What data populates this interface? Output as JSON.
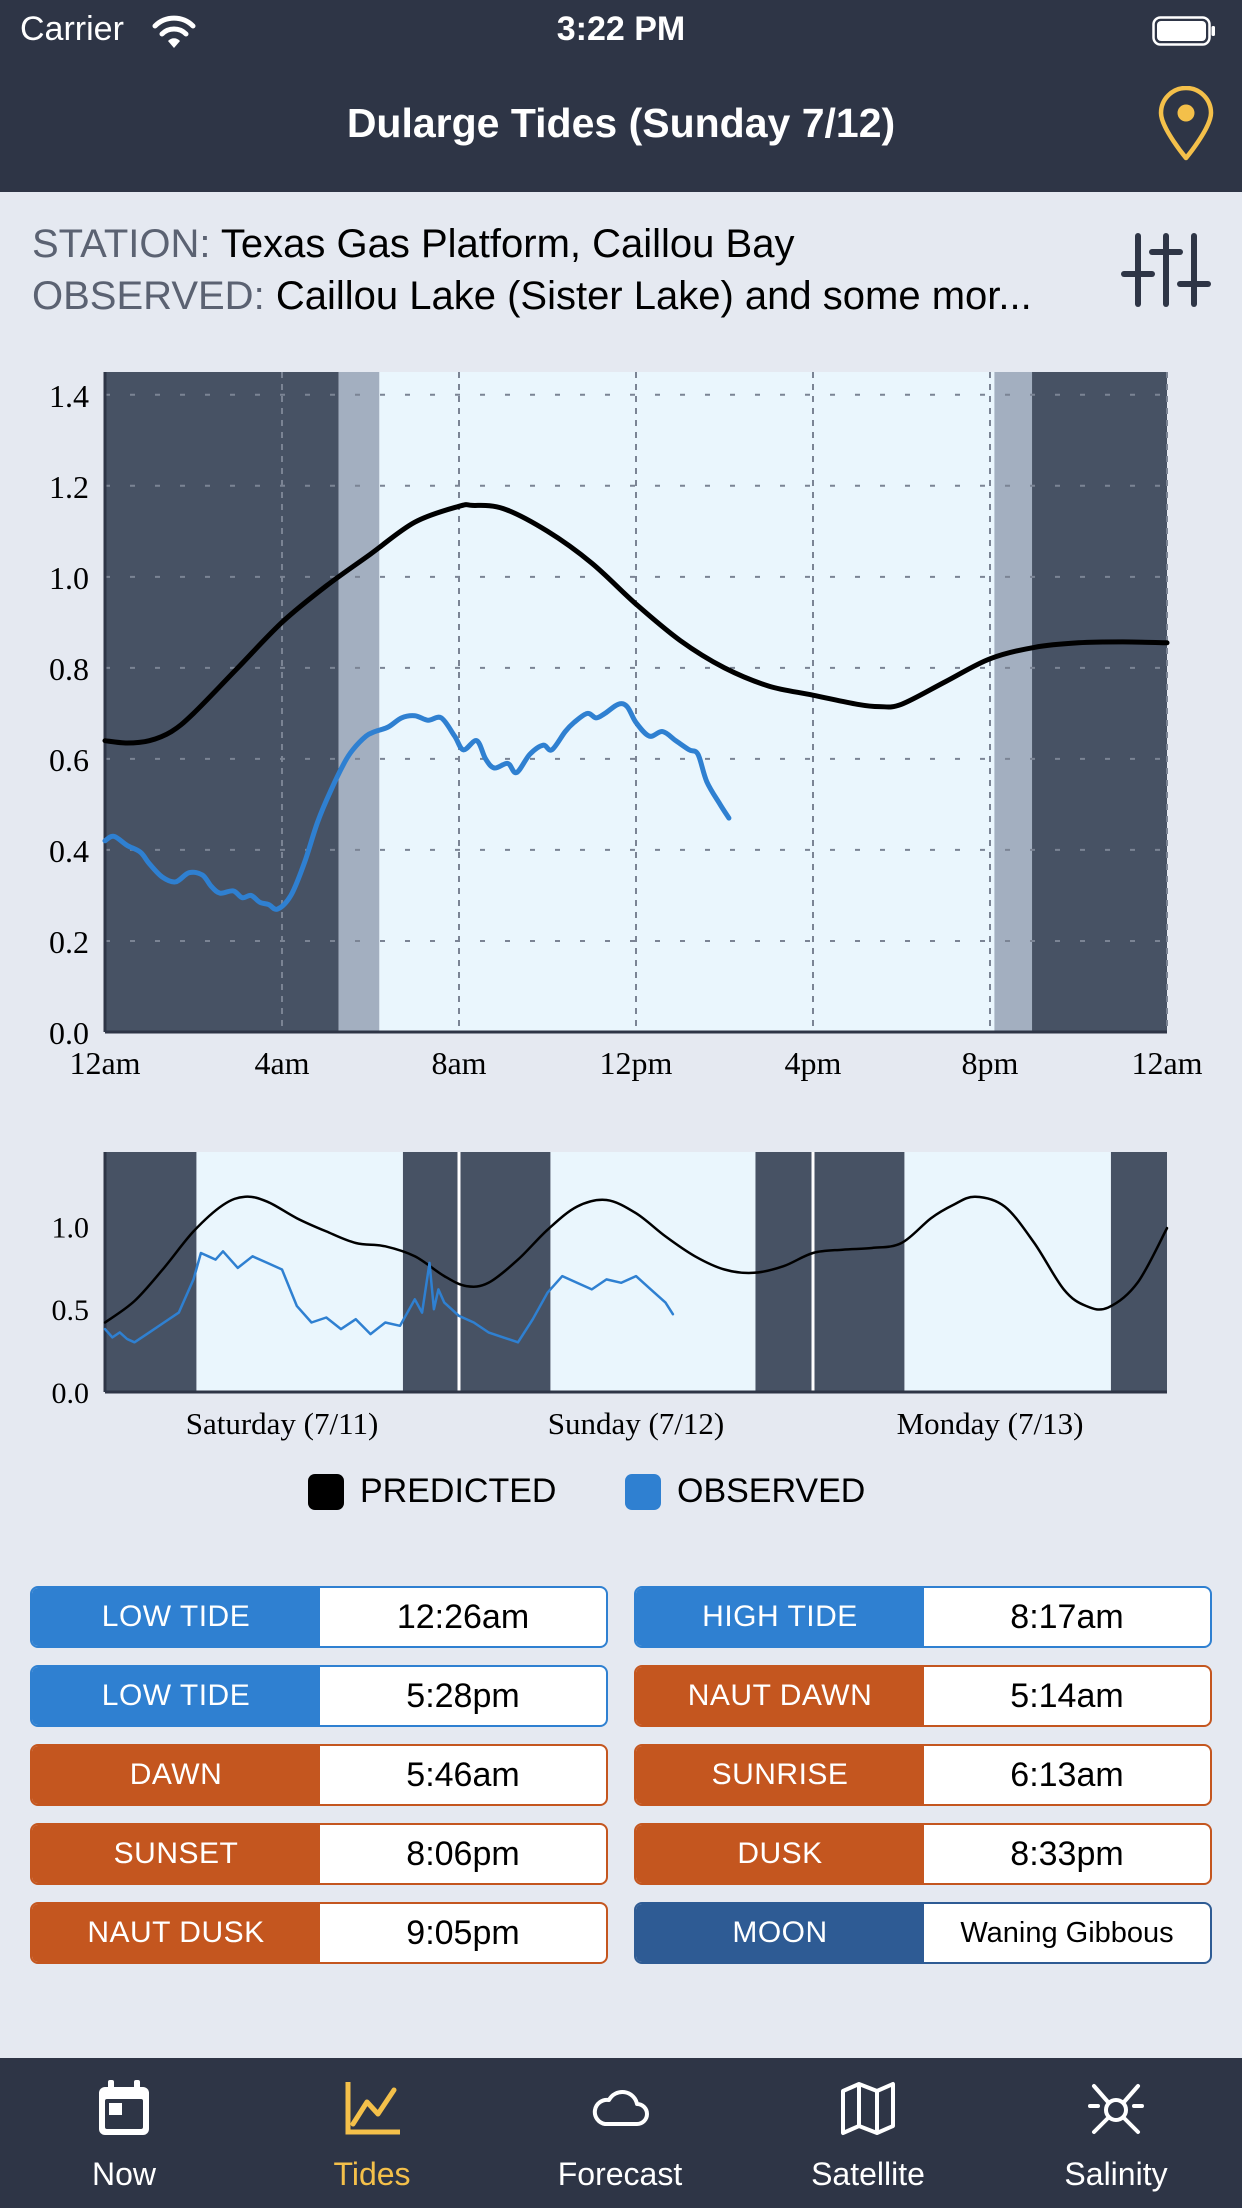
{
  "status_bar": {
    "carrier": "Carrier",
    "time": "3:22 PM"
  },
  "nav": {
    "title": "Dularge Tides (Sunday 7/12)",
    "location_icon": "map-pin-icon",
    "accent_color": "#f4c04a"
  },
  "station": {
    "label": "STATION:",
    "value": "Texas Gas Platform, Caillou Bay"
  },
  "observed": {
    "label": "OBSERVED:",
    "value": "Caillou Lake (Sister Lake) and some mor..."
  },
  "filter_icon": "sliders-icon",
  "chart_data": [
    {
      "type": "line",
      "x_unit": "hours since 12am",
      "x_ticks": [
        "12am",
        "4am",
        "8am",
        "12pm",
        "4pm",
        "8pm",
        "12am"
      ],
      "y_ticks": [
        "0.0",
        "0.2",
        "0.4",
        "0.6",
        "0.8",
        "1.0",
        "1.2",
        "1.4"
      ],
      "xlim": [
        0,
        24
      ],
      "ylim": [
        0,
        1.45
      ],
      "grid": true,
      "bands": [
        {
          "from": 0,
          "to": 5.28,
          "shade": "night",
          "color": "#475264"
        },
        {
          "from": 5.28,
          "to": 6.2,
          "shade": "twilight",
          "color": "#a3afc0"
        },
        {
          "from": 6.2,
          "to": 20.1,
          "shade": "day",
          "color": "#eaf6fd"
        },
        {
          "from": 20.1,
          "to": 20.95,
          "shade": "twilight",
          "color": "#a3afc0"
        },
        {
          "from": 20.95,
          "to": 24,
          "shade": "night",
          "color": "#475264"
        }
      ],
      "series": [
        {
          "name": "PREDICTED",
          "color": "#000000",
          "x": [
            0,
            0.5,
            1,
            1.5,
            2,
            3,
            4,
            5,
            6,
            7,
            8,
            8.3,
            9,
            10,
            11,
            12,
            13,
            14,
            15,
            16,
            17,
            17.5,
            18,
            19,
            20,
            21,
            22,
            23,
            24
          ],
          "y": [
            0.64,
            0.635,
            0.64,
            0.66,
            0.7,
            0.8,
            0.9,
            0.98,
            1.05,
            1.12,
            1.155,
            1.157,
            1.15,
            1.1,
            1.03,
            0.94,
            0.86,
            0.8,
            0.76,
            0.74,
            0.72,
            0.715,
            0.72,
            0.77,
            0.82,
            0.845,
            0.855,
            0.857,
            0.855
          ]
        },
        {
          "name": "OBSERVED",
          "color": "#2f80d1",
          "x": [
            0,
            0.2,
            0.5,
            0.8,
            1.0,
            1.3,
            1.6,
            1.9,
            2.2,
            2.4,
            2.6,
            2.9,
            3.1,
            3.3,
            3.5,
            3.7,
            3.9,
            4.2,
            4.5,
            4.8,
            5.1,
            5.4,
            5.6,
            5.9,
            6.1,
            6.4,
            6.7,
            7.0,
            7.3,
            7.6,
            7.9,
            8.1,
            8.4,
            8.6,
            8.8,
            9.1,
            9.3,
            9.6,
            9.9,
            10.1,
            10.4,
            10.6,
            10.9,
            11.1,
            11.3,
            11.6,
            11.8,
            12.0,
            12.3,
            12.6,
            12.9,
            13.2,
            13.4,
            13.6,
            13.9,
            14.1
          ],
          "y": [
            0.42,
            0.43,
            0.41,
            0.395,
            0.37,
            0.34,
            0.33,
            0.35,
            0.345,
            0.32,
            0.305,
            0.31,
            0.295,
            0.3,
            0.285,
            0.28,
            0.27,
            0.3,
            0.37,
            0.46,
            0.53,
            0.59,
            0.62,
            0.65,
            0.66,
            0.67,
            0.69,
            0.695,
            0.685,
            0.69,
            0.65,
            0.62,
            0.64,
            0.6,
            0.58,
            0.59,
            0.57,
            0.61,
            0.63,
            0.62,
            0.66,
            0.68,
            0.7,
            0.69,
            0.7,
            0.72,
            0.715,
            0.68,
            0.65,
            0.66,
            0.64,
            0.62,
            0.61,
            0.55,
            0.5,
            0.47
          ]
        }
      ]
    },
    {
      "type": "line",
      "x_unit": "hours since Saturday 12am",
      "x_labels": [
        "Saturday (7/11)",
        "Sunday (7/12)",
        "Monday (7/13)"
      ],
      "y_ticks": [
        "0.0",
        "0.5",
        "1.0"
      ],
      "xlim": [
        0,
        72
      ],
      "ylim": [
        0,
        1.45
      ],
      "grid": false,
      "day_dividers": [
        24,
        48
      ],
      "bands": [
        {
          "from": 0,
          "to": 6.2,
          "shade": "night"
        },
        {
          "from": 6.2,
          "to": 20.2,
          "shade": "day"
        },
        {
          "from": 20.2,
          "to": 30.2,
          "shade": "night"
        },
        {
          "from": 30.2,
          "to": 44.1,
          "shade": "day"
        },
        {
          "from": 44.1,
          "to": 54.2,
          "shade": "night"
        },
        {
          "from": 54.2,
          "to": 68.2,
          "shade": "day"
        },
        {
          "from": 68.2,
          "to": 72,
          "shade": "night"
        }
      ],
      "series": [
        {
          "name": "PREDICTED",
          "color": "#000000",
          "x": [
            0,
            2,
            4,
            6,
            8,
            9.5,
            11,
            13,
            15,
            17,
            19,
            21,
            23,
            24.5,
            26,
            28,
            30,
            32,
            34,
            36,
            38,
            40,
            42,
            44,
            46,
            48,
            50,
            52,
            54,
            56,
            57.5,
            59,
            61,
            63,
            65,
            66.5,
            68,
            70,
            72
          ],
          "y": [
            0.42,
            0.55,
            0.75,
            0.97,
            1.13,
            1.18,
            1.15,
            1.05,
            0.97,
            0.9,
            0.88,
            0.82,
            0.7,
            0.64,
            0.66,
            0.8,
            0.98,
            1.12,
            1.16,
            1.08,
            0.94,
            0.82,
            0.74,
            0.72,
            0.76,
            0.84,
            0.86,
            0.87,
            0.9,
            1.05,
            1.13,
            1.18,
            1.12,
            0.9,
            0.62,
            0.52,
            0.51,
            0.66,
            0.99
          ]
        },
        {
          "name": "OBSERVED",
          "color": "#2f80d1",
          "x": [
            0,
            0.5,
            1,
            1.5,
            2,
            3,
            4,
            5,
            6,
            6.5,
            7,
            7.5,
            8,
            9,
            10,
            11,
            12,
            13,
            14,
            15,
            16,
            17,
            18,
            19,
            20,
            21,
            21.5,
            22,
            22.3,
            22.6,
            23,
            23.5,
            24,
            25,
            26,
            27,
            28,
            29,
            30,
            31,
            32,
            33,
            34,
            35,
            36,
            37,
            38,
            38.5
          ],
          "y": [
            0.38,
            0.33,
            0.36,
            0.32,
            0.3,
            0.36,
            0.42,
            0.48,
            0.68,
            0.84,
            0.82,
            0.8,
            0.85,
            0.75,
            0.82,
            0.78,
            0.74,
            0.52,
            0.42,
            0.45,
            0.38,
            0.44,
            0.35,
            0.42,
            0.4,
            0.56,
            0.48,
            0.78,
            0.5,
            0.62,
            0.54,
            0.5,
            0.46,
            0.42,
            0.36,
            0.33,
            0.3,
            0.44,
            0.6,
            0.7,
            0.66,
            0.62,
            0.68,
            0.66,
            0.7,
            0.62,
            0.54,
            0.47
          ]
        }
      ]
    }
  ],
  "legend": {
    "predicted": "PREDICTED",
    "observed": "OBSERVED"
  },
  "tide_table": [
    {
      "label": "LOW TIDE",
      "value": "12:26am",
      "color": "#2f80d1"
    },
    {
      "label": "HIGH TIDE",
      "value": "8:17am",
      "color": "#2f80d1"
    },
    {
      "label": "LOW TIDE",
      "value": "5:28pm",
      "color": "#2f80d1"
    },
    {
      "label": "NAUT DAWN",
      "value": "5:14am",
      "color": "#c4561f"
    },
    {
      "label": "DAWN",
      "value": "5:46am",
      "color": "#c4561f"
    },
    {
      "label": "SUNRISE",
      "value": "6:13am",
      "color": "#c4561f"
    },
    {
      "label": "SUNSET",
      "value": "8:06pm",
      "color": "#c4561f"
    },
    {
      "label": "DUSK",
      "value": "8:33pm",
      "color": "#c4561f"
    },
    {
      "label": "NAUT DUSK",
      "value": "9:05pm",
      "color": "#c4561f"
    },
    {
      "label": "MOON",
      "value": "Waning Gibbous",
      "color": "#2e5b94"
    }
  ],
  "tabs": [
    {
      "label": "Now",
      "icon": "calendar-icon",
      "active": false
    },
    {
      "label": "Tides",
      "icon": "chart-line-icon",
      "active": true
    },
    {
      "label": "Forecast",
      "icon": "cloud-icon",
      "active": false
    },
    {
      "label": "Satellite",
      "icon": "map-icon",
      "active": false
    },
    {
      "label": "Salinity",
      "icon": "molecule-icon",
      "active": false
    }
  ]
}
